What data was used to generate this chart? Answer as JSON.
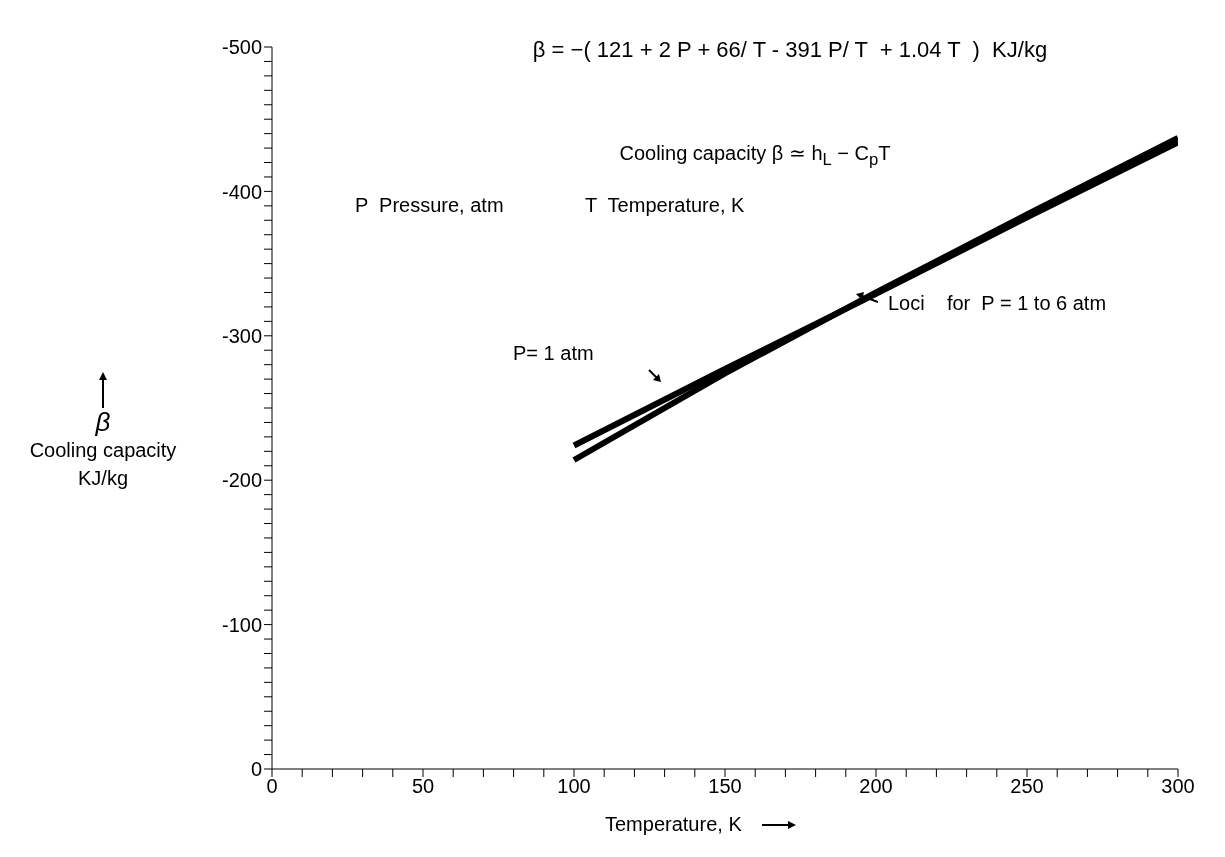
{
  "chart_data": {
    "type": "line",
    "xlabel": "Temperature, K",
    "ylabel": "β\nCooling capacity\nKJ/kg",
    "x": [
      100,
      150,
      200,
      250,
      300
    ],
    "series": [
      {
        "color": "#000000",
        "values": [
          -224,
          -277,
          -329,
          -382,
          -434
        ]
      },
      {
        "color": "#000000",
        "values": [
          -214,
          -274,
          -330,
          -384,
          -437
        ]
      }
    ],
    "xlim": [
      0,
      300
    ],
    "xticks": [
      0,
      {
        "value": 10,
        "label": null
      },
      {
        "value": 20,
        "label": null
      },
      {
        "value": 30,
        "label": null
      },
      {
        "value": 40,
        "label": null
      },
      50,
      {
        "value": 60,
        "label": null
      },
      {
        "value": 70,
        "label": null
      },
      {
        "value": 80,
        "label": null
      },
      {
        "value": 90,
        "label": null
      },
      100,
      {
        "value": 110,
        "label": null
      },
      {
        "value": 120,
        "label": null
      },
      {
        "value": 130,
        "label": null
      },
      {
        "value": 140,
        "label": null
      },
      150,
      {
        "value": 160,
        "label": null
      },
      {
        "value": 170,
        "label": null
      },
      {
        "value": 180,
        "label": null
      },
      {
        "value": 190,
        "label": null
      },
      200,
      {
        "value": 210,
        "label": null
      },
      {
        "value": 220,
        "label": null
      },
      {
        "value": 230,
        "label": null
      },
      {
        "value": 240,
        "label": null
      },
      250,
      {
        "value": 260,
        "label": null
      },
      {
        "value": 270,
        "label": null
      },
      {
        "value": 280,
        "label": null
      },
      {
        "value": 290,
        "label": null
      },
      300
    ],
    "ylim": [
      0,
      -500
    ],
    "yticks": [
      0,
      {
        "value": -10,
        "label": null
      },
      {
        "value": -20,
        "label": null
      },
      {
        "value": -30,
        "label": null
      },
      {
        "value": -40,
        "label": null
      },
      {
        "value": -50,
        "label": null
      },
      {
        "value": -60,
        "label": null
      },
      {
        "value": -70,
        "label": null
      },
      {
        "value": -80,
        "label": null
      },
      {
        "value": -90,
        "label": null
      },
      -100,
      {
        "value": -110,
        "label": null
      },
      {
        "value": -120,
        "label": null
      },
      {
        "value": -130,
        "label": null
      },
      {
        "value": -140,
        "label": null
      },
      {
        "value": -150,
        "label": null
      },
      {
        "value": -160,
        "label": null
      },
      {
        "value": -170,
        "label": null
      },
      {
        "value": -180,
        "label": null
      },
      {
        "value": -190,
        "label": null
      },
      -200,
      {
        "value": -210,
        "label": null
      },
      {
        "value": -220,
        "label": null
      },
      {
        "value": -230,
        "label": null
      },
      {
        "value": -240,
        "label": null
      },
      {
        "value": -250,
        "label": null
      },
      {
        "value": -260,
        "label": null
      },
      {
        "value": -270,
        "label": null
      },
      {
        "value": -280,
        "label": null
      },
      {
        "value": -290,
        "label": null
      },
      -300,
      {
        "value": -310,
        "label": null
      },
      {
        "value": -320,
        "label": null
      },
      {
        "value": -330,
        "label": null
      },
      {
        "value": -340,
        "label": null
      },
      {
        "value": -350,
        "label": null
      },
      {
        "value": -360,
        "label": null
      },
      {
        "value": -370,
        "label": null
      },
      {
        "value": -380,
        "label": null
      },
      {
        "value": -390,
        "label": null
      },
      -400,
      {
        "value": -410,
        "label": null
      },
      {
        "value": -420,
        "label": null
      },
      {
        "value": -430,
        "label": null
      },
      {
        "value": -440,
        "label": null
      },
      {
        "value": -450,
        "label": null
      },
      {
        "value": -460,
        "label": null
      },
      {
        "value": -470,
        "label": null
      },
      {
        "value": -480,
        "label": null
      },
      {
        "value": -490,
        "label": null
      },
      -500
    ],
    "marker": "none",
    "line_style": "solid",
    "annotations": [
      "β = −( 121 + 2 P + 66/ T - 391 P/ T  + 1.04 T  )  KJ/kg",
      "Cooling capacity β ≃ h$_{L}$ − C$_{p}$T",
      "P  Pressure, atm",
      "T  Temperature, K",
      "Loci    for  P = 1 to 6 atm",
      "P= 1 atm"
    ]
  }
}
